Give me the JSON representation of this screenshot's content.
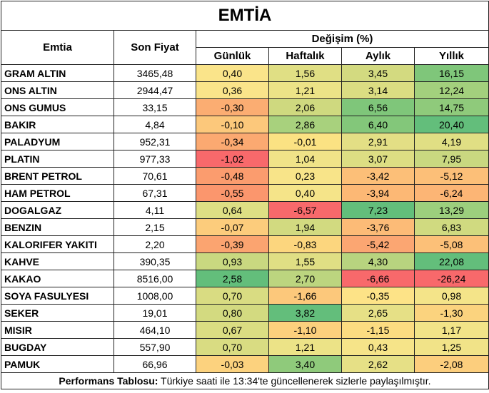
{
  "title": "EMTİA",
  "headers": {
    "emtia": "Emtia",
    "son_fiyat": "Son Fiyat",
    "degisim": "Değişim (%)",
    "gunluk": "Günlük",
    "haftalik": "Haftalık",
    "aylik": "Aylık",
    "yillik": "Yıllık"
  },
  "rows": [
    {
      "name": "GRAM ALTIN",
      "price": "3465,48",
      "gunluk": "0,40",
      "haftalik": "1,56",
      "aylik": "3,45",
      "yillik": "16,15",
      "colors": [
        "#fae48a",
        "#e0df84",
        "#d3da80",
        "#7fc67a"
      ]
    },
    {
      "name": "ONS ALTIN",
      "price": "2944,47",
      "gunluk": "0,36",
      "haftalik": "1,21",
      "aylik": "3,14",
      "yillik": "12,24",
      "colors": [
        "#fae48a",
        "#ece387",
        "#dbdd82",
        "#a3d07d"
      ]
    },
    {
      "name": "ONS GUMUS",
      "price": "33,15",
      "gunluk": "-0,30",
      "haftalik": "2,06",
      "aylik": "6,56",
      "yillik": "14,75",
      "colors": [
        "#fbad72",
        "#cfd97f",
        "#7fc67a",
        "#8fca7b"
      ]
    },
    {
      "name": "BAKIR",
      "price": "4,84",
      "gunluk": "-0,10",
      "haftalik": "2,86",
      "aylik": "6,40",
      "yillik": "20,40",
      "colors": [
        "#fcc87b",
        "#a8d17d",
        "#83c77a",
        "#63be7b"
      ]
    },
    {
      "name": "PALADYUM",
      "price": "952,31",
      "gunluk": "-0,34",
      "haftalik": "-0,01",
      "aylik": "2,91",
      "yillik": "4,19",
      "colors": [
        "#fba971",
        "#fbe283",
        "#e3df85",
        "#e0df84"
      ]
    },
    {
      "name": "PLATIN",
      "price": "977,33",
      "gunluk": "-1,02",
      "haftalik": "1,04",
      "aylik": "3,07",
      "yillik": "7,95",
      "colors": [
        "#f8696b",
        "#f0e388",
        "#ddde83",
        "#c9d880"
      ]
    },
    {
      "name": "BRENT PETROL",
      "price": "70,61",
      "gunluk": "-0,48",
      "haftalik": "0,23",
      "aylik": "-3,42",
      "yillik": "-5,12",
      "colors": [
        "#fb9c6e",
        "#f8e489",
        "#fcbf78",
        "#fcbf78"
      ]
    },
    {
      "name": "HAM PETROL",
      "price": "67,31",
      "gunluk": "-0,55",
      "haftalik": "0,40",
      "aylik": "-3,94",
      "yillik": "-6,24",
      "colors": [
        "#fb966d",
        "#f5e489",
        "#fcb875",
        "#fcb575"
      ]
    },
    {
      "name": "DOGALGAZ",
      "price": "4,11",
      "gunluk": "0,64",
      "haftalik": "-6,57",
      "aylik": "7,23",
      "yillik": "13,29",
      "colors": [
        "#dedf84",
        "#f8696b",
        "#63be7b",
        "#9ccf7d"
      ]
    },
    {
      "name": "BENZIN",
      "price": "2,15",
      "gunluk": "-0,07",
      "haftalik": "1,94",
      "aylik": "-3,76",
      "yillik": "6,83",
      "colors": [
        "#fccc7c",
        "#d2da80",
        "#fcbb77",
        "#d0da80"
      ]
    },
    {
      "name": "KALORIFER YAKITI",
      "price": "2,20",
      "gunluk": "-0,39",
      "haftalik": "-0,83",
      "aylik": "-5,42",
      "yillik": "-5,08",
      "colors": [
        "#fba470",
        "#fcd67e",
        "#fba672",
        "#fcc078"
      ]
    },
    {
      "name": "KAHVE",
      "price": "390,35",
      "gunluk": "0,93",
      "haftalik": "1,55",
      "aylik": "4,30",
      "yillik": "22,08",
      "colors": [
        "#c9d880",
        "#e0df84",
        "#b8d47f",
        "#63be7b"
      ]
    },
    {
      "name": "KAKAO",
      "price": "8516,00",
      "gunluk": "2,58",
      "haftalik": "2,70",
      "aylik": "-6,66",
      "yillik": "-26,24",
      "colors": [
        "#63be7b",
        "#bcd57f",
        "#f8696b",
        "#f8696b"
      ]
    },
    {
      "name": "SOYA FASULYESI",
      "price": "1008,00",
      "gunluk": "0,70",
      "haftalik": "-1,66",
      "aylik": "-0,35",
      "yillik": "0,98",
      "colors": [
        "#d9dc82",
        "#fcc87b",
        "#fde387",
        "#f4e489"
      ]
    },
    {
      "name": "SEKER",
      "price": "19,01",
      "gunluk": "0,80",
      "haftalik": "3,82",
      "aylik": "2,65",
      "yillik": "-1,30",
      "colors": [
        "#d3da80",
        "#63be7b",
        "#e6e086",
        "#fbd37e"
      ]
    },
    {
      "name": "MISIR",
      "price": "464,10",
      "gunluk": "0,67",
      "haftalik": "-1,10",
      "aylik": "-1,15",
      "yillik": "1,17",
      "colors": [
        "#dbdd82",
        "#fcd07d",
        "#fcdc81",
        "#f2e488"
      ]
    },
    {
      "name": "BUGDAY",
      "price": "557,90",
      "gunluk": "0,70",
      "haftalik": "1,21",
      "aylik": "0,43",
      "yillik": "1,25",
      "colors": [
        "#d9dc82",
        "#ece387",
        "#f6e489",
        "#f1e388"
      ]
    },
    {
      "name": "PAMUK",
      "price": "66,96",
      "gunluk": "-0,03",
      "haftalik": "3,40",
      "aylik": "2,62",
      "yillik": "-2,08",
      "colors": [
        "#fcd27e",
        "#8fca7b",
        "#e6e086",
        "#fcce7d"
      ]
    }
  ],
  "footer": {
    "label": "Performans Tablosu:",
    "text": " Türkiye saati ile 13:34'te güncellenerek sizlerle paylaşılmıştır."
  }
}
